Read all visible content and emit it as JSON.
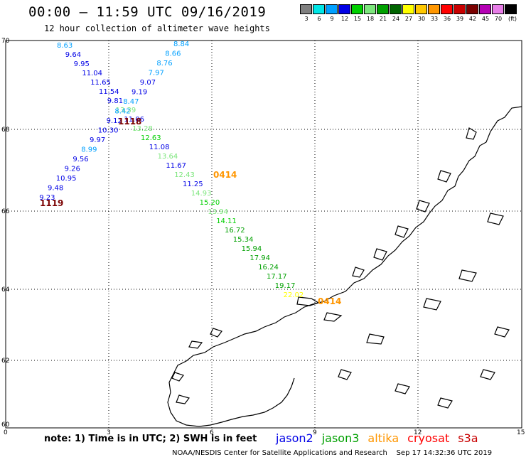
{
  "header": {
    "title": "00:00 – 11:59 UTC 09/16/2019",
    "subtitle": "12 hour collection of altimeter wave heights"
  },
  "legend": {
    "colors": [
      "#808080",
      "#00e6e6",
      "#00a0ff",
      "#0000e6",
      "#00d000",
      "#7ce67c",
      "#00a000",
      "#006400",
      "#ffff00",
      "#ffc800",
      "#ff9600",
      "#ff0000",
      "#c80000",
      "#7a0000",
      "#b400b4",
      "#e67ce6",
      "#000000"
    ],
    "labels": [
      "3",
      "6",
      "9",
      "12",
      "15",
      "18",
      "21",
      "24",
      "27",
      "30",
      "33",
      "36",
      "39",
      "42",
      "45",
      "70",
      "(ft)"
    ]
  },
  "axes": {
    "x_ticks": [
      "0",
      "3",
      "6",
      "9",
      "12",
      "15"
    ],
    "y_ticks": [
      "70",
      "68",
      "66",
      "64",
      "62",
      "60"
    ]
  },
  "tracks": {
    "left_to_right": [
      {
        "v": "8.63",
        "c": "#00a0ff"
      },
      {
        "v": "9.64",
        "c": "#0000e6"
      },
      {
        "v": "9.95",
        "c": "#0000e6"
      },
      {
        "v": "11.04",
        "c": "#0000e6"
      },
      {
        "v": "11.65",
        "c": "#0000e6"
      },
      {
        "v": "11.54",
        "c": "#0000e6"
      },
      {
        "v": "9.81",
        "c": "#0000e6"
      },
      {
        "v": "13.39",
        "c": "#7ce67c"
      },
      {
        "v": "11.06",
        "c": "#0000e6"
      },
      {
        "v": "13.28",
        "c": "#7ce67c"
      },
      {
        "v": "12.63",
        "c": "#00d000"
      },
      {
        "v": "11.08",
        "c": "#0000e6"
      },
      {
        "v": "13.64",
        "c": "#7ce67c"
      },
      {
        "v": "11.67",
        "c": "#0000e6"
      },
      {
        "v": "12.43",
        "c": "#7ce67c"
      },
      {
        "v": "11.25",
        "c": "#0000e6"
      },
      {
        "v": "14.93",
        "c": "#7ce67c"
      },
      {
        "v": "15.20",
        "c": "#00d000"
      },
      {
        "v": "13.94",
        "c": "#7ce67c"
      },
      {
        "v": "14.11",
        "c": "#00d000"
      },
      {
        "v": "16.72",
        "c": "#00a000"
      },
      {
        "v": "15.34",
        "c": "#00a000"
      },
      {
        "v": "15.94",
        "c": "#00a000"
      },
      {
        "v": "17.94",
        "c": "#00a000"
      },
      {
        "v": "16.24",
        "c": "#00a000"
      },
      {
        "v": "17.17",
        "c": "#00a000"
      },
      {
        "v": "19.17",
        "c": "#00a000"
      },
      {
        "v": "22.02",
        "c": "#ffff00"
      }
    ],
    "right_to_left": [
      {
        "v": "8.84",
        "c": "#00a0ff"
      },
      {
        "v": "8.66",
        "c": "#00a0ff"
      },
      {
        "v": "8.76",
        "c": "#00a0ff"
      },
      {
        "v": "7.97",
        "c": "#00a0ff"
      },
      {
        "v": "9.07",
        "c": "#0000e6"
      },
      {
        "v": "9.19",
        "c": "#0000e6"
      },
      {
        "v": "8.47",
        "c": "#00a0ff"
      },
      {
        "v": "8.42",
        "c": "#00a0ff"
      },
      {
        "v": "9.12",
        "c": "#0000e6"
      },
      {
        "v": "10.30",
        "c": "#0000e6"
      },
      {
        "v": "9.97",
        "c": "#0000e6"
      },
      {
        "v": "8.99",
        "c": "#00a0ff"
      },
      {
        "v": "9.56",
        "c": "#0000e6"
      },
      {
        "v": "9.26",
        "c": "#0000e6"
      },
      {
        "v": "10.95",
        "c": "#0000e6"
      },
      {
        "v": "9.48",
        "c": "#0000e6"
      },
      {
        "v": "9.23",
        "c": "#0000e6"
      }
    ],
    "time_labels": [
      {
        "t": "1118",
        "c": "#7a0000"
      },
      {
        "t": "1119",
        "c": "#7a0000"
      },
      {
        "t": "0414",
        "c": "#ff9600"
      },
      {
        "t": "0414",
        "c": "#ff9600"
      }
    ]
  },
  "footer": {
    "note": "note: 1) Time is in UTC; 2) SWH is in feet",
    "satellites": [
      {
        "name": "jason2",
        "color": "#0000e6"
      },
      {
        "name": "jason3",
        "color": "#00a000"
      },
      {
        "name": "altika",
        "color": "#ff9600"
      },
      {
        "name": "cryosat",
        "color": "#ff0000"
      },
      {
        "name": "s3a",
        "color": "#c80000"
      }
    ],
    "credit": "NOAA/NESDIS Center for Satellite Applications and Research",
    "timestamp": "Sep 17 14:32:36 UTC 2019"
  }
}
